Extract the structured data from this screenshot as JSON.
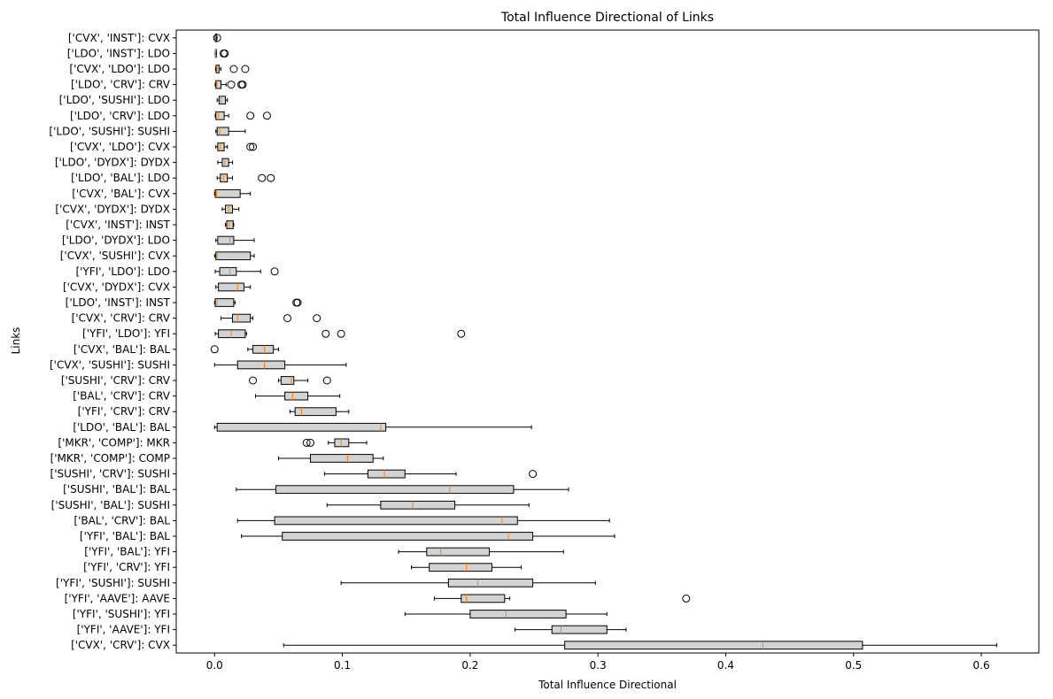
{
  "chart_data": {
    "type": "boxplot",
    "orientation": "horizontal",
    "title": "Total Influence Directional of Links",
    "xlabel": "Total Influence Directional",
    "ylabel": "Links",
    "xlim": [
      -0.03,
      0.645
    ],
    "xticks": [
      0.0,
      0.1,
      0.2,
      0.3,
      0.4,
      0.5,
      0.6
    ],
    "xtick_labels": [
      "0.0",
      "0.1",
      "0.2",
      "0.3",
      "0.4",
      "0.5",
      "0.6"
    ],
    "grid": false,
    "colors": {
      "box_fill": "#d3d3d3",
      "median": "#ff7f0e",
      "line": "#000000"
    },
    "boxes": [
      {
        "label": "['CVX', 'INST']: CVX",
        "whislo": 0.0005,
        "q1": 0.0008,
        "med": 0.001,
        "q3": 0.0015,
        "whishi": 0.002,
        "fliers": [
          0.002
        ]
      },
      {
        "label": "['LDO', 'INST']: LDO",
        "whislo": 0.0005,
        "q1": 0.0007,
        "med": 0.0009,
        "q3": 0.0012,
        "whishi": 0.0015,
        "fliers": [
          0.007,
          0.008
        ]
      },
      {
        "label": "['CVX', 'LDO']: LDO",
        "whislo": 0.0008,
        "q1": 0.0012,
        "med": 0.0018,
        "q3": 0.0035,
        "whishi": 0.005,
        "fliers": [
          0.015,
          0.024
        ]
      },
      {
        "label": "['LDO', 'CRV']: CRV",
        "whislo": 0.0005,
        "q1": 0.001,
        "med": 0.0018,
        "q3": 0.005,
        "whishi": 0.009,
        "fliers": [
          0.013,
          0.021,
          0.022
        ]
      },
      {
        "label": "['LDO', 'SUSHI']: LDO",
        "whislo": 0.002,
        "q1": 0.0035,
        "med": 0.005,
        "q3": 0.0085,
        "whishi": 0.01,
        "fliers": []
      },
      {
        "label": "['LDO', 'CRV']: LDO",
        "whislo": 0.0005,
        "q1": 0.001,
        "med": 0.003,
        "q3": 0.0075,
        "whishi": 0.011,
        "fliers": [
          0.028,
          0.041
        ]
      },
      {
        "label": "['LDO', 'SUSHI']: SUSHI",
        "whislo": 0.001,
        "q1": 0.002,
        "med": 0.004,
        "q3": 0.011,
        "whishi": 0.024,
        "fliers": []
      },
      {
        "label": "['CVX', 'LDO']: CVX",
        "whislo": 0.001,
        "q1": 0.0025,
        "med": 0.0045,
        "q3": 0.0075,
        "whishi": 0.01,
        "fliers": [
          0.028,
          0.03
        ]
      },
      {
        "label": "['LDO', 'DYDX']: DYDX",
        "whislo": 0.0025,
        "q1": 0.006,
        "med": 0.008,
        "q3": 0.011,
        "whishi": 0.014,
        "fliers": []
      },
      {
        "label": "['LDO', 'BAL']: LDO",
        "whislo": 0.002,
        "q1": 0.0045,
        "med": 0.007,
        "q3": 0.01,
        "whishi": 0.014,
        "fliers": [
          0.037,
          0.044
        ]
      },
      {
        "label": "['CVX', 'BAL']: CVX",
        "whislo": 0.0,
        "q1": 0.0005,
        "med": 0.0015,
        "q3": 0.02,
        "whishi": 0.028,
        "fliers": []
      },
      {
        "label": "['CVX', 'DYDX']: DYDX",
        "whislo": 0.006,
        "q1": 0.0085,
        "med": 0.011,
        "q3": 0.014,
        "whishi": 0.019,
        "fliers": []
      },
      {
        "label": "['CVX', 'INST']: INST",
        "whislo": 0.0085,
        "q1": 0.0095,
        "med": 0.0115,
        "q3": 0.0145,
        "whishi": 0.015,
        "fliers": []
      },
      {
        "label": "['LDO', 'DYDX']: LDO",
        "whislo": 0.001,
        "q1": 0.0025,
        "med": 0.012,
        "q3": 0.015,
        "whishi": 0.031,
        "fliers": []
      },
      {
        "label": "['CVX', 'SUSHI']: CVX",
        "whislo": 0.0,
        "q1": 0.001,
        "med": 0.002,
        "q3": 0.028,
        "whishi": 0.031,
        "fliers": []
      },
      {
        "label": "['YFI', 'LDO']: LDO",
        "whislo": 0.0005,
        "q1": 0.004,
        "med": 0.012,
        "q3": 0.017,
        "whishi": 0.036,
        "fliers": [
          0.047
        ]
      },
      {
        "label": "['CVX', 'DYDX']: CVX",
        "whislo": 0.001,
        "q1": 0.003,
        "med": 0.018,
        "q3": 0.023,
        "whishi": 0.028,
        "fliers": []
      },
      {
        "label": "['LDO', 'INST']: INST",
        "whislo": 0.0,
        "q1": 0.0005,
        "med": 0.002,
        "q3": 0.015,
        "whishi": 0.016,
        "fliers": [
          0.064,
          0.065
        ]
      },
      {
        "label": "['CVX', 'CRV']: CRV",
        "whislo": 0.005,
        "q1": 0.014,
        "med": 0.018,
        "q3": 0.028,
        "whishi": 0.03,
        "fliers": [
          0.057,
          0.08
        ]
      },
      {
        "label": "['YFI', 'LDO']: YFI",
        "whislo": 0.0005,
        "q1": 0.003,
        "med": 0.013,
        "q3": 0.024,
        "whishi": 0.025,
        "fliers": [
          0.087,
          0.099,
          0.193
        ]
      },
      {
        "label": "['CVX', 'BAL']: BAL",
        "whislo": 0.026,
        "q1": 0.03,
        "med": 0.039,
        "q3": 0.046,
        "whishi": 0.05,
        "fliers": [
          0.0
        ]
      },
      {
        "label": "['CVX', 'SUSHI']: SUSHI",
        "whislo": 0.0,
        "q1": 0.018,
        "med": 0.039,
        "q3": 0.055,
        "whishi": 0.103,
        "fliers": []
      },
      {
        "label": "['SUSHI', 'CRV']: CRV",
        "whislo": 0.05,
        "q1": 0.052,
        "med": 0.06,
        "q3": 0.062,
        "whishi": 0.073,
        "fliers": [
          0.03,
          0.088
        ]
      },
      {
        "label": "['BAL', 'CRV']: CRV",
        "whislo": 0.032,
        "q1": 0.055,
        "med": 0.061,
        "q3": 0.073,
        "whishi": 0.098,
        "fliers": []
      },
      {
        "label": "['YFI', 'CRV']: CRV",
        "whislo": 0.059,
        "q1": 0.063,
        "med": 0.068,
        "q3": 0.095,
        "whishi": 0.105,
        "fliers": []
      },
      {
        "label": "['LDO', 'BAL']: BAL",
        "whislo": 0.0,
        "q1": 0.002,
        "med": 0.13,
        "q3": 0.134,
        "whishi": 0.248,
        "fliers": []
      },
      {
        "label": "['MKR', 'COMP']: MKR",
        "whislo": 0.089,
        "q1": 0.094,
        "med": 0.099,
        "q3": 0.105,
        "whishi": 0.119,
        "fliers": [
          0.072,
          0.075
        ]
      },
      {
        "label": "['MKR', 'COMP']: COMP",
        "whislo": 0.05,
        "q1": 0.075,
        "med": 0.104,
        "q3": 0.124,
        "whishi": 0.132,
        "fliers": []
      },
      {
        "label": "['SUSHI', 'CRV']: SUSHI",
        "whislo": 0.086,
        "q1": 0.12,
        "med": 0.133,
        "q3": 0.149,
        "whishi": 0.189,
        "fliers": [
          0.249
        ]
      },
      {
        "label": "['SUSHI', 'BAL']: BAL",
        "whislo": 0.017,
        "q1": 0.048,
        "med": 0.184,
        "q3": 0.234,
        "whishi": 0.277,
        "fliers": []
      },
      {
        "label": "['SUSHI', 'BAL']: SUSHI",
        "whislo": 0.088,
        "q1": 0.13,
        "med": 0.155,
        "q3": 0.188,
        "whishi": 0.246,
        "fliers": []
      },
      {
        "label": "['BAL', 'CRV']: BAL",
        "whislo": 0.018,
        "q1": 0.047,
        "med": 0.225,
        "q3": 0.237,
        "whishi": 0.309,
        "fliers": []
      },
      {
        "label": "['YFI', 'BAL']: BAL",
        "whislo": 0.021,
        "q1": 0.053,
        "med": 0.23,
        "q3": 0.249,
        "whishi": 0.313,
        "fliers": []
      },
      {
        "label": "['YFI', 'BAL']: YFI",
        "whislo": 0.144,
        "q1": 0.166,
        "med": 0.177,
        "q3": 0.215,
        "whishi": 0.273,
        "fliers": []
      },
      {
        "label": "['YFI', 'CRV']: YFI",
        "whislo": 0.154,
        "q1": 0.168,
        "med": 0.197,
        "q3": 0.217,
        "whishi": 0.24,
        "fliers": []
      },
      {
        "label": "['YFI', 'SUSHI']: SUSHI",
        "whislo": 0.099,
        "q1": 0.183,
        "med": 0.206,
        "q3": 0.249,
        "whishi": 0.298,
        "fliers": []
      },
      {
        "label": "['YFI', 'AAVE']: AAVE",
        "whislo": 0.172,
        "q1": 0.193,
        "med": 0.197,
        "q3": 0.227,
        "whishi": 0.231,
        "fliers": [
          0.369
        ]
      },
      {
        "label": "['YFI', 'SUSHI']: YFI",
        "whislo": 0.149,
        "q1": 0.2,
        "med": 0.228,
        "q3": 0.275,
        "whishi": 0.307,
        "fliers": []
      },
      {
        "label": "['YFI', 'AAVE']: YFI",
        "whislo": 0.235,
        "q1": 0.264,
        "med": 0.271,
        "q3": 0.307,
        "whishi": 0.322,
        "fliers": []
      },
      {
        "label": "['CVX', 'CRV']: CVX",
        "whislo": 0.054,
        "q1": 0.274,
        "med": 0.429,
        "q3": 0.507,
        "whishi": 0.612,
        "fliers": []
      }
    ]
  }
}
